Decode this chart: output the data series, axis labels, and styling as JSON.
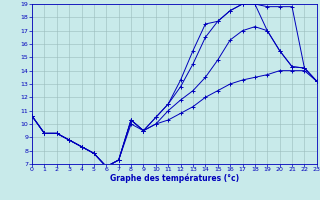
{
  "title": "Graphe des températures (°c)",
  "bg": "#c8eaea",
  "lc": "#0000bb",
  "grid_color": "#9bbcbc",
  "xlim": [
    0,
    23
  ],
  "ylim": [
    7,
    19
  ],
  "xticks": [
    0,
    1,
    2,
    3,
    4,
    5,
    6,
    7,
    8,
    9,
    10,
    11,
    12,
    13,
    14,
    15,
    16,
    17,
    18,
    19,
    20,
    21,
    22,
    23
  ],
  "yticks": [
    7,
    8,
    9,
    10,
    11,
    12,
    13,
    14,
    15,
    16,
    17,
    18,
    19
  ],
  "lines": [
    {
      "x": [
        0,
        1,
        2,
        3,
        4,
        5,
        6,
        7,
        8,
        9,
        10,
        11,
        12,
        13,
        14,
        15,
        16,
        17,
        18,
        19,
        20,
        21,
        22,
        23
      ],
      "y": [
        10.6,
        9.3,
        9.3,
        8.8,
        8.3,
        7.8,
        6.8,
        7.3,
        10.3,
        9.5,
        10.5,
        11.5,
        13.3,
        15.5,
        17.5,
        17.7,
        18.5,
        19.0,
        19.0,
        18.8,
        18.8,
        18.8,
        14.2,
        13.2
      ]
    },
    {
      "x": [
        0,
        1,
        2,
        3,
        4,
        5,
        6,
        7,
        8,
        9,
        10,
        11,
        12,
        13,
        14,
        15,
        16,
        17,
        18,
        19,
        20,
        21,
        22,
        23
      ],
      "y": [
        10.6,
        9.3,
        9.3,
        8.8,
        8.3,
        7.8,
        6.8,
        7.3,
        10.3,
        9.5,
        10.5,
        11.5,
        12.8,
        14.5,
        16.5,
        17.7,
        18.5,
        19.0,
        19.0,
        17.0,
        15.5,
        14.3,
        14.2,
        13.2
      ]
    },
    {
      "x": [
        0,
        1,
        2,
        3,
        4,
        5,
        6,
        7,
        8,
        9,
        10,
        11,
        12,
        13,
        14,
        15,
        16,
        17,
        18,
        19,
        20,
        21,
        22,
        23
      ],
      "y": [
        10.6,
        9.3,
        9.3,
        8.8,
        8.3,
        7.8,
        6.8,
        7.3,
        10.3,
        9.5,
        10.0,
        11.0,
        11.8,
        12.5,
        13.5,
        14.8,
        16.3,
        17.0,
        17.3,
        17.0,
        15.5,
        14.3,
        14.2,
        13.2
      ]
    },
    {
      "x": [
        0,
        1,
        2,
        3,
        4,
        5,
        6,
        7,
        8,
        9,
        10,
        11,
        12,
        13,
        14,
        15,
        16,
        17,
        18,
        19,
        20,
        21,
        22,
        23
      ],
      "y": [
        10.6,
        9.3,
        9.3,
        8.8,
        8.3,
        7.8,
        6.8,
        7.3,
        10.0,
        9.5,
        10.0,
        10.3,
        10.8,
        11.3,
        12.0,
        12.5,
        13.0,
        13.3,
        13.5,
        13.7,
        14.0,
        14.0,
        14.0,
        13.2
      ]
    }
  ]
}
